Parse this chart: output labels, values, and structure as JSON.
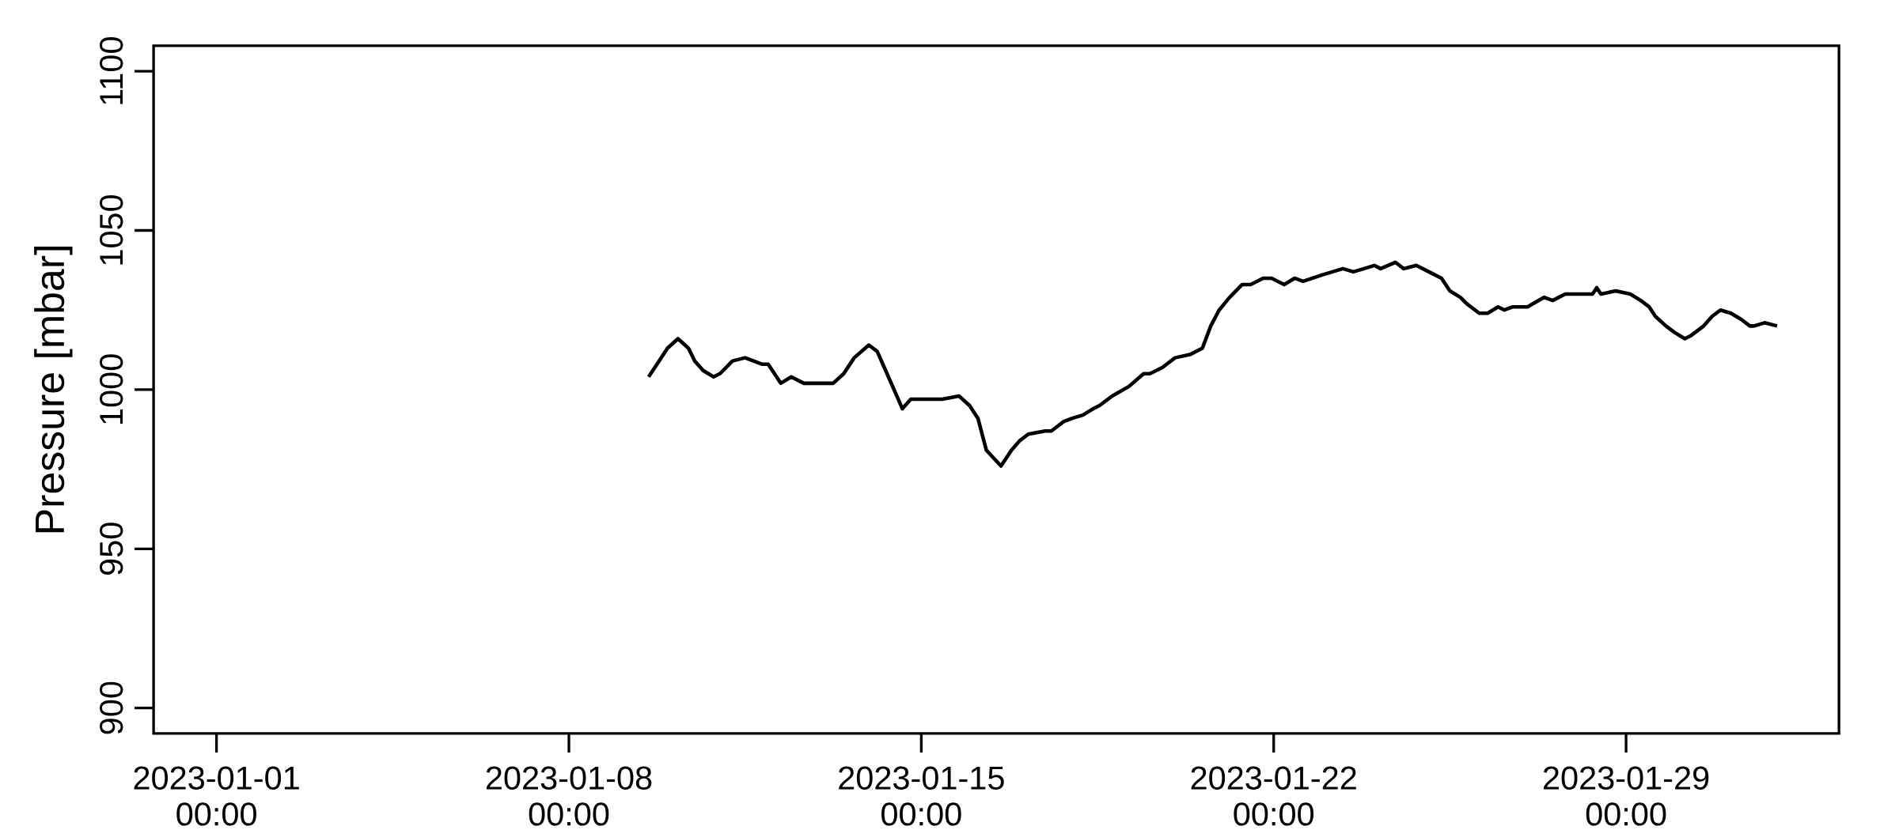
{
  "chart_data": {
    "type": "line",
    "ylabel": "Pressure [mbar]",
    "xlim": [
      "2022-12-30T18:00",
      "2023-02-02T05:30"
    ],
    "ylim": [
      892,
      1108
    ],
    "xticks": [
      {
        "value": "2023-01-01T00:00",
        "label": "2023-01-01 00:00"
      },
      {
        "value": "2023-01-08T00:00",
        "label": "2023-01-08 00:00"
      },
      {
        "value": "2023-01-15T00:00",
        "label": "2023-01-15 00:00"
      },
      {
        "value": "2023-01-22T00:00",
        "label": "2023-01-22 00:00"
      },
      {
        "value": "2023-01-29T00:00",
        "label": "2023-01-29 00:00"
      }
    ],
    "yticks": [
      900,
      950,
      1000,
      1050,
      1100
    ],
    "series": [
      {
        "color": "#000000",
        "x": [
          "2023-01-09T14:00",
          "2023-01-09T19:00",
          "2023-01-09T23:00",
          "2023-01-10T04:00",
          "2023-01-10T09:00",
          "2023-01-10T12:00",
          "2023-01-10T16:00",
          "2023-01-10T21:00",
          "2023-01-11T00:00",
          "2023-01-11T06:00",
          "2023-01-11T12:00",
          "2023-01-11T16:00",
          "2023-01-11T20:00",
          "2023-01-11T23:00",
          "2023-01-12T02:00",
          "2023-01-12T05:00",
          "2023-01-12T10:00",
          "2023-01-12T16:00",
          "2023-01-12T23:00",
          "2023-01-13T06:00",
          "2023-01-13T11:00",
          "2023-01-13T16:00",
          "2023-01-13T23:00",
          "2023-01-14T03:00",
          "2023-01-14T07:00",
          "2023-01-14T11:00",
          "2023-01-14T15:00",
          "2023-01-14T19:00",
          "2023-01-15T03:00",
          "2023-01-15T10:00",
          "2023-01-15T18:00",
          "2023-01-15T23:00",
          "2023-01-16T03:00",
          "2023-01-16T07:00",
          "2023-01-16T14:00",
          "2023-01-16T19:00",
          "2023-01-16T23:00",
          "2023-01-17T03:00",
          "2023-01-17T11:00",
          "2023-01-17T14:00",
          "2023-01-17T20:00",
          "2023-01-18T00:00",
          "2023-01-18T05:00",
          "2023-01-18T10:00",
          "2023-01-18T13:00",
          "2023-01-18T19:00",
          "2023-01-19T03:00",
          "2023-01-19T10:00",
          "2023-01-19T13:00",
          "2023-01-19T19:00",
          "2023-01-20T01:00",
          "2023-01-20T08:00",
          "2023-01-20T14:00",
          "2023-01-20T18:00",
          "2023-01-20T22:00",
          "2023-01-21T03:00",
          "2023-01-21T09:00",
          "2023-01-21T13:00",
          "2023-01-21T19:00",
          "2023-01-21T23:00",
          "2023-01-22T05:00",
          "2023-01-22T10:00",
          "2023-01-22T14:00",
          "2023-01-22T23:00",
          "2023-01-23T09:00",
          "2023-01-23T14:00",
          "2023-01-24T00:00",
          "2023-01-24T03:00",
          "2023-01-24T10:00",
          "2023-01-24T14:00",
          "2023-01-24T20:00",
          "2023-01-25T02:00",
          "2023-01-25T08:00",
          "2023-01-25T12:00",
          "2023-01-25T17:00",
          "2023-01-25T20:00",
          "2023-01-26T02:00",
          "2023-01-26T06:00",
          "2023-01-26T11:00",
          "2023-01-26T14:00",
          "2023-01-26T18:00",
          "2023-01-27T01:00",
          "2023-01-27T09:00",
          "2023-01-27T13:00",
          "2023-01-27T19:00",
          "2023-01-28T02:00",
          "2023-01-28T08:00",
          "2023-01-28T10:00",
          "2023-01-28T12:00",
          "2023-01-28T19:00",
          "2023-01-29T02:00",
          "2023-01-29T07:00",
          "2023-01-29T11:00",
          "2023-01-29T14:00",
          "2023-01-29T19:00",
          "2023-01-29T23:00",
          "2023-01-30T04:00",
          "2023-01-30T07:00",
          "2023-01-30T13:00",
          "2023-01-30T17:00",
          "2023-01-30T21:00",
          "2023-01-31T02:00",
          "2023-01-31T07:00",
          "2023-01-31T11:00",
          "2023-01-31T13:00",
          "2023-01-31T18:00",
          "2023-02-01T00:00"
        ],
        "values": [
          1004,
          1009,
          1013,
          1016,
          1013,
          1009,
          1006,
          1004,
          1005,
          1009,
          1010,
          1009,
          1008,
          1008,
          1005,
          1002,
          1004,
          1002,
          1002,
          1002,
          1005,
          1010,
          1014,
          1012,
          1006,
          1000,
          994,
          997,
          997,
          997,
          998,
          995,
          991,
          981,
          976,
          981,
          984,
          986,
          987,
          987,
          990,
          991,
          992,
          994,
          995,
          998,
          1001,
          1005,
          1005,
          1007,
          1010,
          1011,
          1013,
          1020,
          1025,
          1029,
          1033,
          1033,
          1035,
          1035,
          1033,
          1035,
          1034,
          1036,
          1038,
          1037,
          1039,
          1038,
          1040,
          1038,
          1039,
          1037,
          1035,
          1031,
          1029,
          1027,
          1024,
          1024,
          1026,
          1025,
          1026,
          1026,
          1029,
          1028,
          1030,
          1030,
          1030,
          1032,
          1030,
          1031,
          1030,
          1028,
          1026,
          1023,
          1020,
          1018,
          1016,
          1017,
          1020,
          1023,
          1025,
          1024,
          1022,
          1020,
          1020,
          1021,
          1020
        ]
      }
    ]
  }
}
